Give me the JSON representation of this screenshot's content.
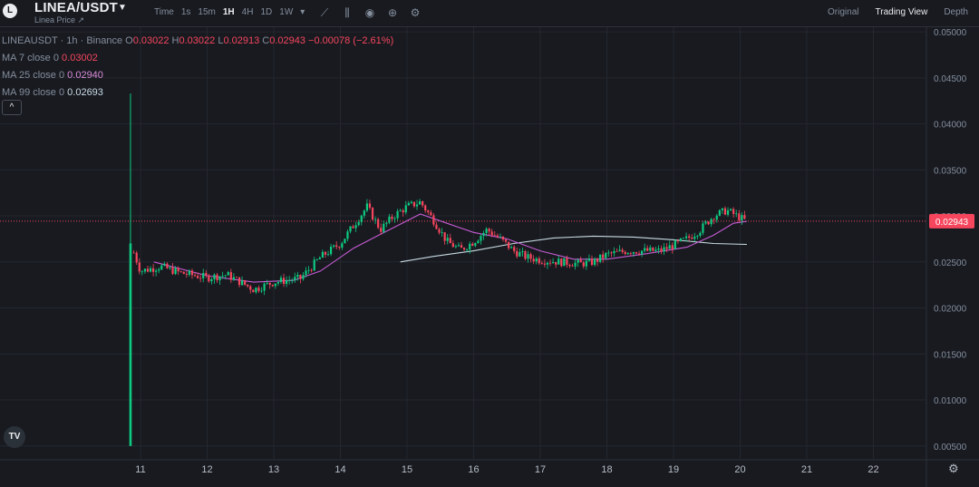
{
  "header": {
    "pair": "LINEA/USDT",
    "subtitle": "Linea Price",
    "subtitle_link_icon": "external-link-icon",
    "intervals": [
      {
        "label": "Time",
        "active": false
      },
      {
        "label": "1s",
        "active": false
      },
      {
        "label": "15m",
        "active": false
      },
      {
        "label": "1H",
        "active": true
      },
      {
        "label": "4H",
        "active": false
      },
      {
        "label": "1D",
        "active": false
      },
      {
        "label": "1W",
        "active": false
      }
    ],
    "tools": [
      "indicator-icon",
      "candle-type-icon",
      "screenshot-icon",
      "add-icon",
      "settings-icon"
    ],
    "views": [
      {
        "label": "Original",
        "active": false
      },
      {
        "label": "Trading View",
        "active": true
      },
      {
        "label": "Depth",
        "active": false
      }
    ]
  },
  "legend": {
    "symbol_line": "LINEAUSDT · 1h · Binance",
    "o_label": "O",
    "o": "0.03022",
    "h_label": "H",
    "h": "0.03022",
    "l_label": "L",
    "l": "0.02913",
    "c_label": "C",
    "c": "0.02943",
    "change": "−0.00078 (−2.61%)",
    "ma7_label": "MA 7 close 0",
    "ma7": "0.03002",
    "ma25_label": "MA 25 close 0",
    "ma25": "0.02940",
    "ma99_label": "MA 99 close 0",
    "ma99": "0.02693",
    "toggle": "^"
  },
  "colors": {
    "up": "#0ecb81",
    "down": "#f6465d",
    "ma7": "#f0b90b",
    "ma25": "#c75bd3",
    "ma99": "#c9dbe3",
    "price_tag": "#f6465d"
  },
  "chart_data": {
    "type": "candlestick",
    "x_ticks": [
      "11",
      "12",
      "13",
      "14",
      "15",
      "16",
      "17",
      "18",
      "19",
      "20",
      "21",
      "22"
    ],
    "y_ticks": [
      "0.00500",
      "0.01000",
      "0.01500",
      "0.02000",
      "0.02500",
      "0.03000",
      "0.03500",
      "0.04000",
      "0.04500",
      "0.05000"
    ],
    "ylim": [
      0.0035,
      0.0505
    ],
    "current_price": "0.02943",
    "first_candle": {
      "o": 0.005,
      "h": 0.0433,
      "l": 0.005,
      "c": 0.027
    },
    "path_points": [
      [
        10.85,
        0.027
      ],
      [
        11.0,
        0.024
      ],
      [
        11.3,
        0.0245
      ],
      [
        11.6,
        0.0238
      ],
      [
        12.0,
        0.0233
      ],
      [
        12.3,
        0.0236
      ],
      [
        12.7,
        0.022
      ],
      [
        13.0,
        0.0228
      ],
      [
        13.4,
        0.0232
      ],
      [
        13.7,
        0.0255
      ],
      [
        14.0,
        0.027
      ],
      [
        14.2,
        0.029
      ],
      [
        14.4,
        0.031
      ],
      [
        14.6,
        0.0285
      ],
      [
        14.8,
        0.03
      ],
      [
        15.0,
        0.031
      ],
      [
        15.2,
        0.0315
      ],
      [
        15.4,
        0.0295
      ],
      [
        15.6,
        0.0272
      ],
      [
        15.8,
        0.0263
      ],
      [
        16.0,
        0.0272
      ],
      [
        16.2,
        0.0285
      ],
      [
        16.4,
        0.0275
      ],
      [
        16.6,
        0.0262
      ],
      [
        16.8,
        0.0255
      ],
      [
        17.0,
        0.0252
      ],
      [
        17.3,
        0.025
      ],
      [
        17.6,
        0.0248
      ],
      [
        17.8,
        0.025
      ],
      [
        18.0,
        0.0258
      ],
      [
        18.3,
        0.0262
      ],
      [
        18.6,
        0.0262
      ],
      [
        18.8,
        0.0262
      ],
      [
        19.0,
        0.0268
      ],
      [
        19.2,
        0.0275
      ],
      [
        19.4,
        0.0285
      ],
      [
        19.6,
        0.03
      ],
      [
        19.8,
        0.0306
      ],
      [
        20.0,
        0.0298
      ],
      [
        20.1,
        0.0294
      ]
    ],
    "ma25_points": [
      [
        11.2,
        0.025
      ],
      [
        12.0,
        0.0235
      ],
      [
        12.7,
        0.0228
      ],
      [
        13.3,
        0.023
      ],
      [
        13.7,
        0.024
      ],
      [
        14.2,
        0.0265
      ],
      [
        14.6,
        0.028
      ],
      [
        15.2,
        0.0302
      ],
      [
        15.6,
        0.0292
      ],
      [
        16.0,
        0.0282
      ],
      [
        16.5,
        0.0275
      ],
      [
        17.0,
        0.0262
      ],
      [
        17.5,
        0.0253
      ],
      [
        18.0,
        0.0253
      ],
      [
        18.6,
        0.0259
      ],
      [
        19.2,
        0.0266
      ],
      [
        19.6,
        0.0279
      ],
      [
        19.9,
        0.0292
      ],
      [
        20.1,
        0.0294
      ]
    ],
    "ma99_points": [
      [
        14.9,
        0.025
      ],
      [
        15.4,
        0.0256
      ],
      [
        16.0,
        0.0262
      ],
      [
        16.6,
        0.027
      ],
      [
        17.2,
        0.0276
      ],
      [
        17.8,
        0.0278
      ],
      [
        18.4,
        0.0277
      ],
      [
        19.0,
        0.0274
      ],
      [
        19.6,
        0.027
      ],
      [
        20.1,
        0.0269
      ]
    ]
  }
}
